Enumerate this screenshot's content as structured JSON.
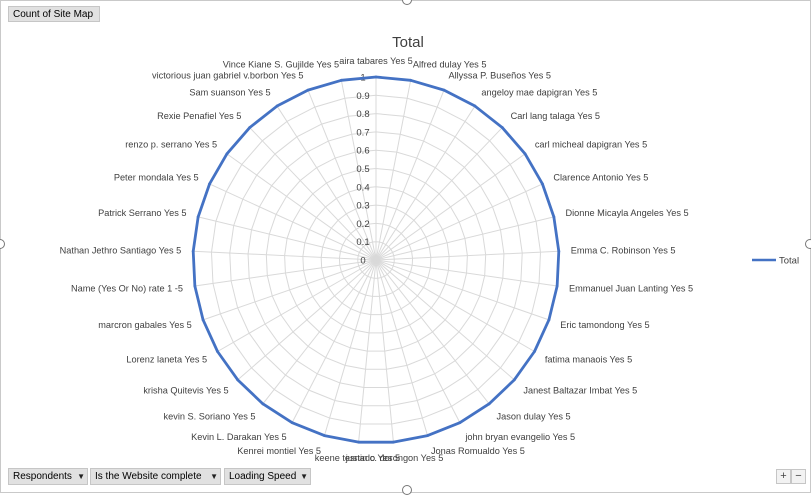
{
  "pivot": {
    "value_field": "Count of Site Map",
    "filters": [
      {
        "label": "Respondents"
      },
      {
        "label": "Is the Website complete"
      },
      {
        "label": "Loading  Speed"
      }
    ],
    "zoom_in": "+",
    "zoom_out": "−"
  },
  "chart_data": {
    "type": "radar",
    "title": "Total",
    "legend": {
      "position": "right",
      "entries": [
        "Total"
      ]
    },
    "series": [
      {
        "name": "Total",
        "color": "#4472c4"
      }
    ],
    "ylim": [
      0,
      1
    ],
    "ticks": [
      "0",
      "0.1",
      "0.2",
      "0.3",
      "0.4",
      "0.5",
      "0.6",
      "0.7",
      "0.8",
      "0.9",
      "1"
    ],
    "grid": true,
    "categories": [
      "aira tabares Yes 5",
      "Alfred dulay Yes 5",
      "Allyssa P. Buseños Yes 5",
      "angeloy mae dapigran Yes 5",
      "Carl lang talaga Yes 5",
      "carl micheal dapigran Yes 5",
      "Clarence Antonio Yes 5",
      "Dionne Micayla Angeles Yes 5",
      "Emma C. Robinson Yes 5",
      "Emmanuel Juan Lanting Yes 5",
      "Eric tamondong Yes 5",
      "fatima manaois Yes 5",
      "Janest Baltazar Imbat Yes 5",
      "Jason dulay Yes 5",
      "john bryan evangelio Yes 5",
      "Jonas Romualdo Yes 5",
      "justin c. dorongon Yes 5",
      "keene tesnado Yes 5",
      "Kenrei montiel Yes 5",
      "Kevin L. Darakan Yes 5",
      "kevin S. Soriano Yes 5",
      "krisha Quitevis Yes 5",
      "Lorenz laneta Yes 5",
      "marcron gabales Yes 5",
      "Name  (Yes Or No) rate 1 -5",
      "Nathan Jethro Santiago Yes 5",
      "Patrick Serrano Yes 5",
      "Peter mondala Yes 5",
      "renzo p. serrano Yes 5",
      "Rexie Penafiel Yes 5",
      "Sam suanson Yes 5",
      "victorious juan gabriel v.borbon Yes 5",
      "Vince Kiane S. Gujilde Yes 5"
    ],
    "values": [
      1,
      1,
      1,
      1,
      1,
      1,
      1,
      1,
      1,
      1,
      1,
      1,
      1,
      1,
      1,
      1,
      1,
      1,
      1,
      1,
      1,
      1,
      1,
      1,
      1,
      1,
      1,
      1,
      1,
      1,
      1,
      1,
      1
    ]
  }
}
